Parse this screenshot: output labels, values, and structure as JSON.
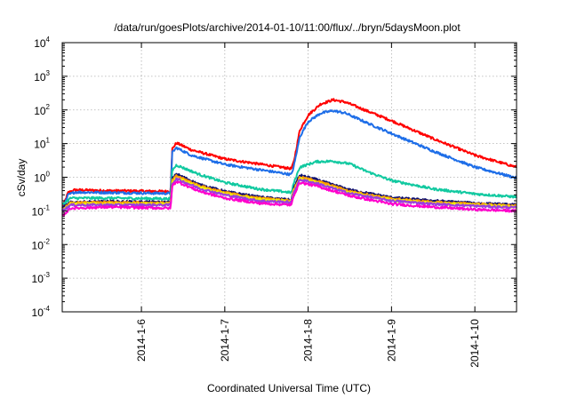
{
  "chart_data": {
    "type": "line",
    "title": "/data/run/goesPlots/archive/2014-01-10/11:00/flux/../bryn/5daysMoon.plot",
    "xlabel": "Coordinated Universal Time (UTC)",
    "ylabel": "cSv/day",
    "y_scale": "log",
    "ylim": [
      0.0001,
      10000
    ],
    "y_ticks": [
      {
        "base": "10",
        "exp": "-4"
      },
      {
        "base": "10",
        "exp": "-3"
      },
      {
        "base": "10",
        "exp": "-2"
      },
      {
        "base": "10",
        "exp": "-1"
      },
      {
        "base": "10",
        "exp": "0"
      },
      {
        "base": "10",
        "exp": "1"
      },
      {
        "base": "10",
        "exp": "2"
      },
      {
        "base": "10",
        "exp": "3"
      },
      {
        "base": "10",
        "exp": "4"
      }
    ],
    "x_ticks": [
      "2014-1-6",
      "2014-1-7",
      "2014-1-8",
      "2014-1-9",
      "2014-1-10"
    ],
    "x_tick_days": [
      6,
      7,
      8,
      9,
      10
    ],
    "xlim_days": [
      5.05,
      10.5
    ],
    "grid": true,
    "series": [
      {
        "color": "#ff0000",
        "x": [
          5.05,
          5.12,
          5.2,
          5.6,
          6.35,
          6.37,
          6.42,
          6.6,
          7.0,
          7.4,
          7.8,
          7.83,
          7.9,
          8.0,
          8.15,
          8.3,
          8.45,
          8.7,
          9.0,
          9.5,
          10.0,
          10.5
        ],
        "y": [
          0.12,
          0.35,
          0.42,
          0.4,
          0.38,
          7.0,
          10.5,
          6.5,
          3.5,
          2.5,
          1.8,
          3.0,
          25,
          70,
          150,
          200,
          170,
          95,
          48,
          14,
          4.5,
          2.0
        ]
      },
      {
        "color": "#1e6ee8",
        "x": [
          5.05,
          5.12,
          5.2,
          5.6,
          6.35,
          6.37,
          6.42,
          6.6,
          7.0,
          7.4,
          7.8,
          7.83,
          7.9,
          8.0,
          8.15,
          8.3,
          8.45,
          8.7,
          9.0,
          9.5,
          10.0,
          10.5
        ],
        "y": [
          0.1,
          0.3,
          0.36,
          0.35,
          0.33,
          5.5,
          7.5,
          4.5,
          2.4,
          1.7,
          1.2,
          2.2,
          16,
          45,
          80,
          95,
          80,
          42,
          20,
          6.0,
          2.0,
          0.95
        ]
      },
      {
        "color": "#11c9a0",
        "x": [
          5.05,
          5.15,
          5.6,
          6.35,
          6.37,
          6.42,
          6.7,
          7.0,
          7.4,
          7.8,
          7.83,
          7.9,
          8.1,
          8.3,
          8.5,
          8.7,
          9.0,
          9.5,
          10.0,
          10.5
        ],
        "y": [
          0.15,
          0.24,
          0.24,
          0.23,
          1.6,
          2.3,
          1.2,
          0.7,
          0.45,
          0.35,
          0.7,
          2.0,
          2.9,
          3.0,
          2.5,
          1.5,
          0.8,
          0.45,
          0.32,
          0.26
        ]
      },
      {
        "color": "#101070",
        "x": [
          5.05,
          5.15,
          5.6,
          6.35,
          6.37,
          6.42,
          6.7,
          7.0,
          7.4,
          7.8,
          7.83,
          7.9,
          8.1,
          8.5,
          9.0,
          9.5,
          10.0,
          10.5
        ],
        "y": [
          0.12,
          0.18,
          0.19,
          0.18,
          0.9,
          1.25,
          0.6,
          0.38,
          0.26,
          0.21,
          0.5,
          1.15,
          0.85,
          0.42,
          0.25,
          0.2,
          0.17,
          0.15
        ]
      },
      {
        "color": "#ff9900",
        "x": [
          5.05,
          5.15,
          5.6,
          6.35,
          6.37,
          6.42,
          6.7,
          7.0,
          7.4,
          7.8,
          7.83,
          7.9,
          8.1,
          8.5,
          9.0,
          9.5,
          10.0,
          10.5
        ],
        "y": [
          0.11,
          0.17,
          0.18,
          0.17,
          0.8,
          1.1,
          0.55,
          0.35,
          0.24,
          0.2,
          0.45,
          1.0,
          0.78,
          0.38,
          0.23,
          0.18,
          0.16,
          0.14
        ]
      },
      {
        "color": "#f0f000",
        "x": [
          5.05,
          5.15,
          5.6,
          6.35,
          6.37,
          6.42,
          6.7,
          7.0,
          7.4,
          7.8,
          7.83,
          7.9,
          8.1,
          8.5,
          9.0,
          9.5,
          10.0,
          10.5
        ],
        "y": [
          0.1,
          0.16,
          0.16,
          0.16,
          0.7,
          0.95,
          0.5,
          0.32,
          0.22,
          0.19,
          0.4,
          0.9,
          0.7,
          0.35,
          0.21,
          0.17,
          0.15,
          0.13
        ]
      },
      {
        "color": "#9a3fe0",
        "x": [
          5.05,
          5.15,
          5.6,
          6.35,
          6.37,
          6.42,
          6.7,
          7.0,
          7.4,
          7.8,
          7.83,
          7.9,
          8.1,
          8.5,
          9.0,
          9.5,
          10.0,
          10.5
        ],
        "y": [
          0.1,
          0.15,
          0.15,
          0.15,
          0.65,
          0.9,
          0.46,
          0.3,
          0.2,
          0.18,
          0.38,
          0.85,
          0.66,
          0.33,
          0.2,
          0.16,
          0.14,
          0.125
        ]
      },
      {
        "color": "#ff00cc",
        "x": [
          5.05,
          5.15,
          5.6,
          6.35,
          6.37,
          6.42,
          6.7,
          7.0,
          7.4,
          7.8,
          7.83,
          7.9,
          8.1,
          8.5,
          9.0,
          9.5,
          10.0,
          10.5
        ],
        "y": [
          0.07,
          0.12,
          0.13,
          0.12,
          0.55,
          0.75,
          0.38,
          0.24,
          0.17,
          0.15,
          0.3,
          0.7,
          0.55,
          0.28,
          0.16,
          0.13,
          0.11,
          0.1
        ]
      }
    ]
  }
}
